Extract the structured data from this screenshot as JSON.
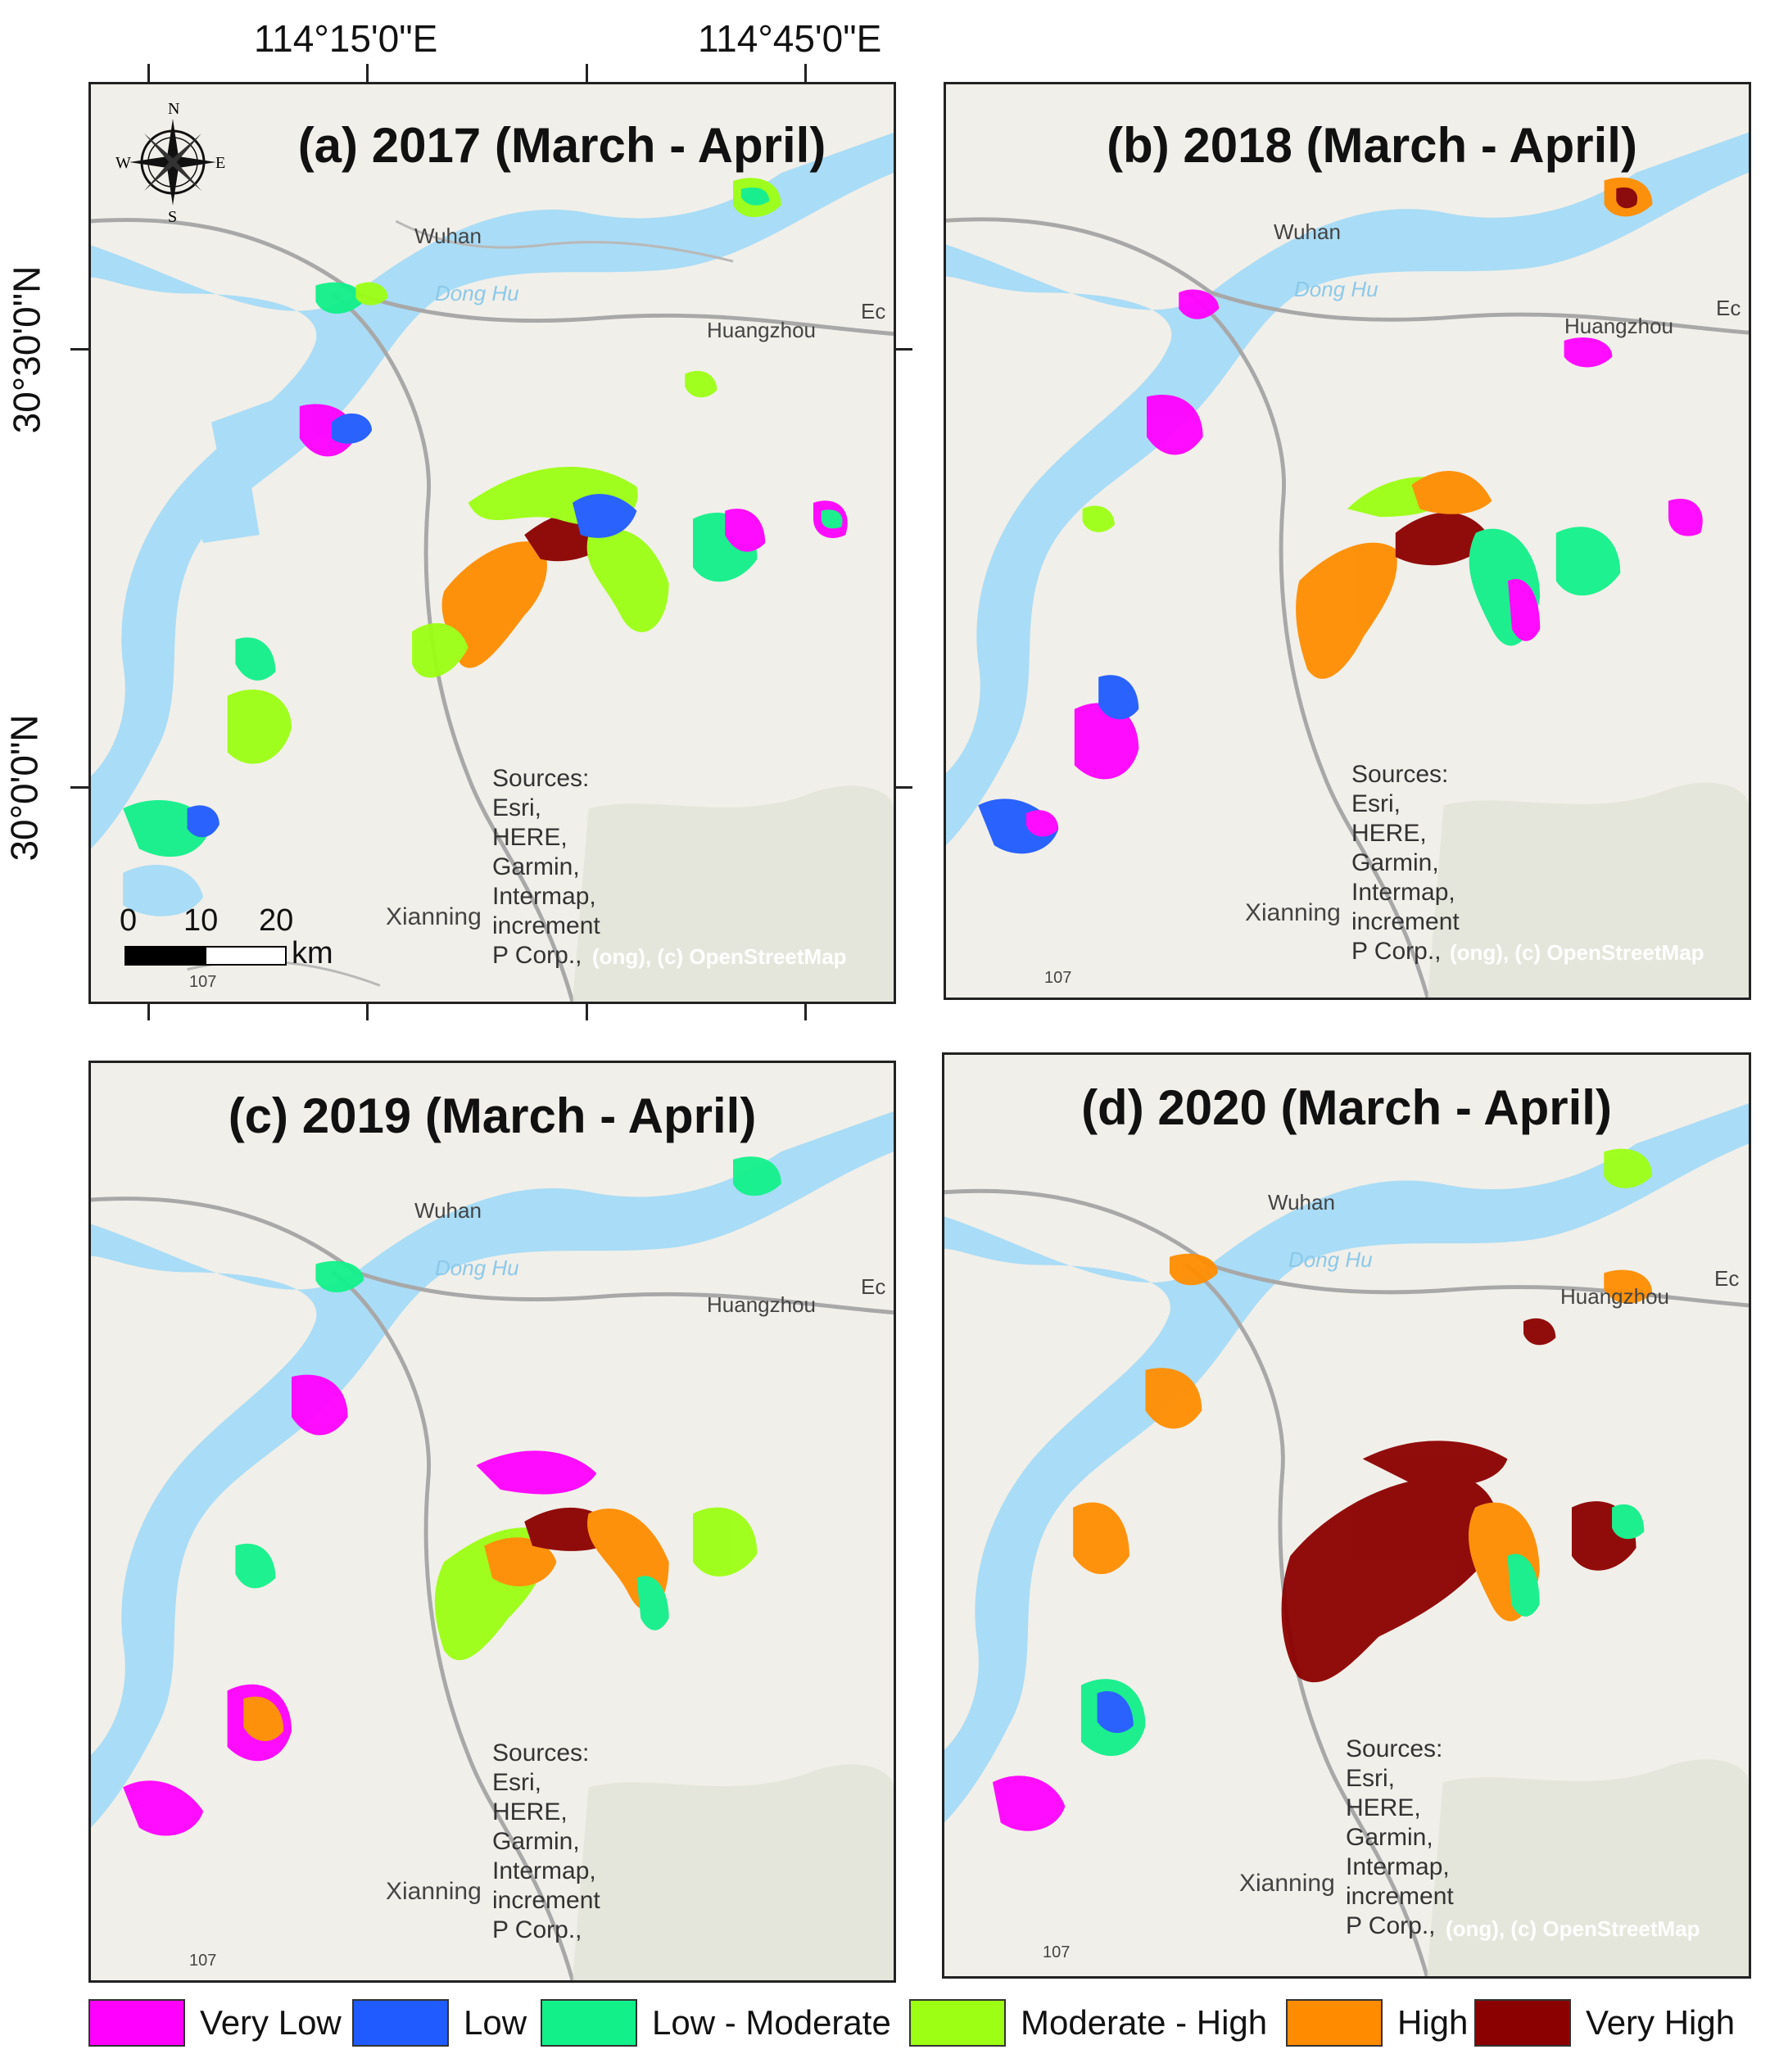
{
  "axes": {
    "lon_labels": [
      "114°15'0\"E",
      "114°45'0\"E"
    ],
    "lat_labels": [
      "30°30'0\"N",
      "30°0'0\"N"
    ]
  },
  "panels": [
    {
      "title": "(a) 2017 (March - April)"
    },
    {
      "title": "(b) 2018 (March - April)"
    },
    {
      "title": "(c) 2019 (March - April)"
    },
    {
      "title": "(d) 2020 (March - April)"
    }
  ],
  "places": {
    "wuhan": "Wuhan",
    "huangzhou": "Huangzhou",
    "xianning": "Xianning",
    "ec": "Ec",
    "donghu": "Dong Hu",
    "road": "107"
  },
  "sources_text": "Sources:\nEsri,\nHERE,\nGarmin,\nIntermap,\nincrement\nP Corp.,",
  "osm_credit": "(ong), (c) OpenStreetMap",
  "compass": {
    "n": "N",
    "s": "S",
    "e": "E",
    "w": "W"
  },
  "scale": {
    "ticks": [
      "0",
      "10",
      "20"
    ],
    "unit": "km"
  },
  "legend": [
    {
      "label": "Very Low",
      "color": "#ff00ff"
    },
    {
      "label": "Low",
      "color": "#1f5bff"
    },
    {
      "label": "Low - Moderate",
      "color": "#12f08a"
    },
    {
      "label": "Moderate - High",
      "color": "#9cff14"
    },
    {
      "label": "High",
      "color": "#ff8c00"
    },
    {
      "label": "Very High",
      "color": "#8b0000"
    }
  ],
  "base_colors": {
    "land": "#f1efe9",
    "water": "#a9dcf6",
    "road": "#a8a8a8",
    "halo": "#d8eefc"
  }
}
